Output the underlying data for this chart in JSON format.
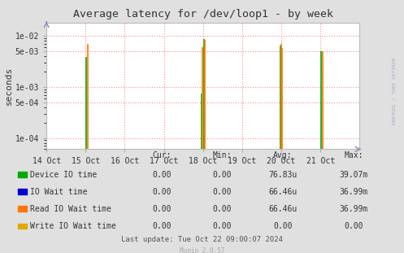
{
  "title": "Average latency for /dev/loop1 - by week",
  "ylabel": "seconds",
  "background_color": "#e0e0e0",
  "plot_bg_color": "#ffffff",
  "grid_color_h": "#ff8888",
  "grid_color_v": "#ff8888",
  "x_min": 0,
  "x_max": 8,
  "y_min": 6e-05,
  "y_max": 0.018,
  "x_tick_labels": [
    "14 Oct",
    "15 Oct",
    "16 Oct",
    "17 Oct",
    "18 Oct",
    "19 Oct",
    "20 Oct",
    "21 Oct"
  ],
  "x_tick_positions": [
    0,
    1,
    2,
    3,
    4,
    5,
    6,
    7
  ],
  "yticks": [
    0.0001,
    0.0005,
    0.001,
    0.005,
    0.01
  ],
  "ytick_labels": [
    "1e-04",
    "5e-04",
    "1e-03",
    "5e-03",
    "1e-02"
  ],
  "spikes_green": [
    [
      1.02,
      0.0038
    ],
    [
      3.97,
      0.00073
    ],
    [
      4.02,
      0.0087
    ],
    [
      5.97,
      0.0065
    ],
    [
      6.0,
      0.0055
    ],
    [
      7.02,
      0.005
    ]
  ],
  "spikes_orange": [
    [
      1.05,
      0.007
    ],
    [
      3.99,
      0.006
    ],
    [
      4.05,
      0.0082
    ],
    [
      5.99,
      0.007
    ],
    [
      6.03,
      0.0058
    ],
    [
      7.05,
      0.0049
    ]
  ],
  "green_color": "#00aa00",
  "blue_color": "#0000cc",
  "orange_color": "#ff7700",
  "yellow_color": "#ddaa00",
  "legend_labels": [
    "Device IO time",
    "IO Wait time",
    "Read IO Wait time",
    "Write IO Wait time"
  ],
  "legend_colors": [
    "#00aa00",
    "#0000cc",
    "#ff7700",
    "#ddaa00"
  ],
  "table_headers": [
    "Cur:",
    "Min:",
    "Avg:",
    "Max:"
  ],
  "table_rows": [
    [
      "0.00",
      "0.00",
      "76.83u",
      "39.07m"
    ],
    [
      "0.00",
      "0.00",
      "66.46u",
      "36.99m"
    ],
    [
      "0.00",
      "0.00",
      "66.46u",
      "36.99m"
    ],
    [
      "0.00",
      "0.00",
      "0.00",
      "0.00"
    ]
  ],
  "footer": "Last update: Tue Oct 22 09:00:07 2024",
  "munin_version": "Munin 2.0.57",
  "right_label": "RRDTOOL / TOBI OETIKER"
}
